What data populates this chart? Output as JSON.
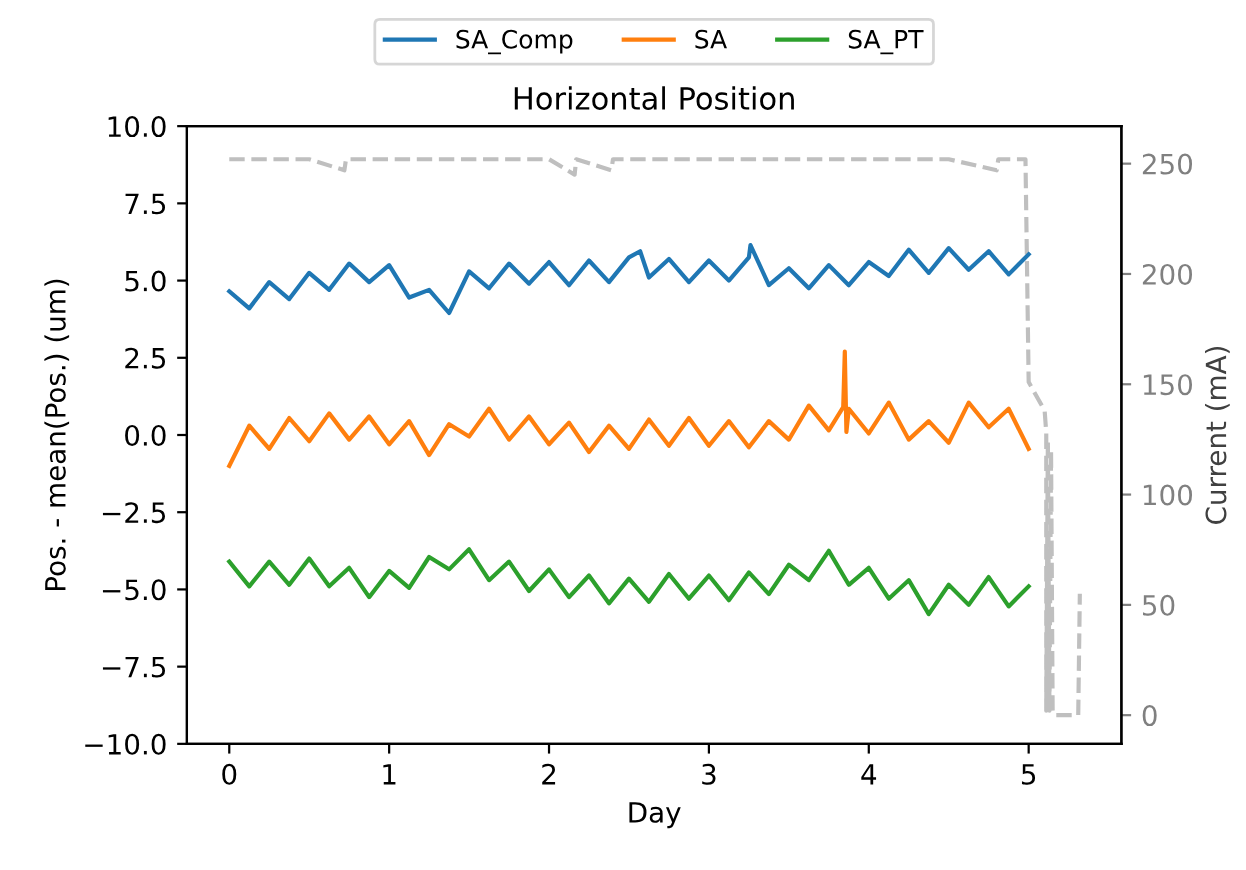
{
  "chart_data": {
    "type": "line",
    "title": "Horizontal Position",
    "xlabel": "Day",
    "ylabel": "Pos. - mean(Pos.) (um)",
    "y2label": "Current (mA)",
    "xlim": [
      -0.265,
      5.58
    ],
    "xticks": [
      0,
      1,
      2,
      3,
      4,
      5
    ],
    "ylim": [
      -10,
      10
    ],
    "yticks": [
      {
        "value": -10,
        "label": "−10.0"
      },
      {
        "value": -7.5,
        "label": "−7.5"
      },
      {
        "value": -5,
        "label": "−5.0"
      },
      {
        "value": -2.5,
        "label": "−2.5"
      },
      {
        "value": 0,
        "label": "0.0"
      },
      {
        "value": 2.5,
        "label": "2.5"
      },
      {
        "value": 5,
        "label": "5.0"
      },
      {
        "value": 7.5,
        "label": "7.5"
      },
      {
        "value": 10,
        "label": "10.0"
      }
    ],
    "y2lim": [
      -13,
      267
    ],
    "y2ticks": [
      0,
      50,
      100,
      150,
      200,
      250
    ],
    "legend": "top",
    "grid": false,
    "line_style": "solid",
    "series": [
      {
        "name": "SA_Comp",
        "color": "#1f77b4",
        "x": [
          0,
          0.125,
          0.25,
          0.375,
          0.5,
          0.625,
          0.75,
          0.875,
          1.0,
          1.125,
          1.25,
          1.375,
          1.5,
          1.625,
          1.75,
          1.875,
          2.0,
          2.125,
          2.25,
          2.375,
          2.5,
          2.57,
          2.625,
          2.75,
          2.875,
          3.0,
          3.125,
          3.25,
          3.26,
          3.375,
          3.5,
          3.625,
          3.75,
          3.875,
          4.0,
          4.125,
          4.25,
          4.375,
          4.5,
          4.625,
          4.75,
          4.875,
          5.0
        ],
        "values": [
          4.65,
          4.1,
          4.95,
          4.4,
          5.25,
          4.7,
          5.55,
          4.95,
          5.5,
          4.45,
          4.7,
          3.95,
          5.3,
          4.75,
          5.55,
          4.9,
          5.6,
          4.85,
          5.65,
          4.95,
          5.75,
          5.95,
          5.1,
          5.7,
          4.95,
          5.65,
          5.0,
          5.75,
          6.15,
          4.85,
          5.4,
          4.75,
          5.5,
          4.85,
          5.6,
          5.15,
          6.0,
          5.25,
          6.05,
          5.35,
          5.95,
          5.2,
          5.85
        ]
      },
      {
        "name": "SA",
        "color": "#ff7f0e",
        "x": [
          0,
          0.125,
          0.25,
          0.375,
          0.5,
          0.625,
          0.75,
          0.875,
          1.0,
          1.125,
          1.25,
          1.375,
          1.5,
          1.625,
          1.75,
          1.875,
          2.0,
          2.125,
          2.25,
          2.375,
          2.5,
          2.625,
          2.75,
          2.875,
          3.0,
          3.125,
          3.25,
          3.375,
          3.5,
          3.625,
          3.75,
          3.84,
          3.85,
          3.86,
          3.875,
          4.0,
          4.125,
          4.25,
          4.375,
          4.5,
          4.625,
          4.75,
          4.875,
          5.0
        ],
        "values": [
          -1.0,
          0.3,
          -0.45,
          0.55,
          -0.2,
          0.7,
          -0.15,
          0.6,
          -0.3,
          0.45,
          -0.65,
          0.35,
          -0.05,
          0.85,
          -0.15,
          0.6,
          -0.3,
          0.4,
          -0.55,
          0.3,
          -0.45,
          0.5,
          -0.35,
          0.55,
          -0.35,
          0.45,
          -0.4,
          0.45,
          -0.15,
          0.95,
          0.15,
          0.9,
          2.7,
          0.1,
          0.85,
          0.05,
          1.05,
          -0.15,
          0.45,
          -0.25,
          1.05,
          0.25,
          0.85,
          -0.45
        ]
      },
      {
        "name": "SA_PT",
        "color": "#2ca02c",
        "x": [
          0,
          0.125,
          0.25,
          0.375,
          0.5,
          0.625,
          0.75,
          0.875,
          1.0,
          1.125,
          1.25,
          1.375,
          1.5,
          1.625,
          1.75,
          1.875,
          2.0,
          2.125,
          2.25,
          2.375,
          2.5,
          2.625,
          2.75,
          2.875,
          3.0,
          3.125,
          3.25,
          3.375,
          3.5,
          3.625,
          3.75,
          3.875,
          4.0,
          4.125,
          4.25,
          4.375,
          4.5,
          4.625,
          4.75,
          4.875,
          5.0
        ],
        "values": [
          -4.1,
          -4.9,
          -4.1,
          -4.85,
          -4.0,
          -4.9,
          -4.3,
          -5.25,
          -4.4,
          -4.95,
          -3.95,
          -4.35,
          -3.7,
          -4.7,
          -4.1,
          -5.05,
          -4.35,
          -5.25,
          -4.55,
          -5.45,
          -4.65,
          -5.4,
          -4.5,
          -5.3,
          -4.55,
          -5.35,
          -4.45,
          -5.15,
          -4.2,
          -4.7,
          -3.75,
          -4.85,
          -4.3,
          -5.3,
          -4.7,
          -5.8,
          -4.85,
          -5.5,
          -4.6,
          -5.55,
          -4.9
        ]
      },
      {
        "color": "#bfbfbf",
        "axis": "y2",
        "line_style": "dashed",
        "x": [
          0,
          0.5,
          0.72,
          0.73,
          1.0,
          1.5,
          2.0,
          2.16,
          2.17,
          2.39,
          2.4,
          3.0,
          3.5,
          4.0,
          4.5,
          4.8,
          4.81,
          4.98,
          5.0,
          5.1,
          5.11,
          5.11,
          5.12,
          5.13,
          5.14,
          5.15,
          5.17,
          5.28,
          5.31,
          5.32
        ],
        "values": [
          252,
          252,
          247,
          252,
          252,
          252,
          252,
          245,
          252,
          247,
          252,
          252,
          252,
          252,
          252,
          247,
          252,
          252,
          151,
          138,
          128,
          2,
          125,
          2,
          120,
          1,
          0,
          0,
          0,
          55
        ]
      }
    ]
  }
}
